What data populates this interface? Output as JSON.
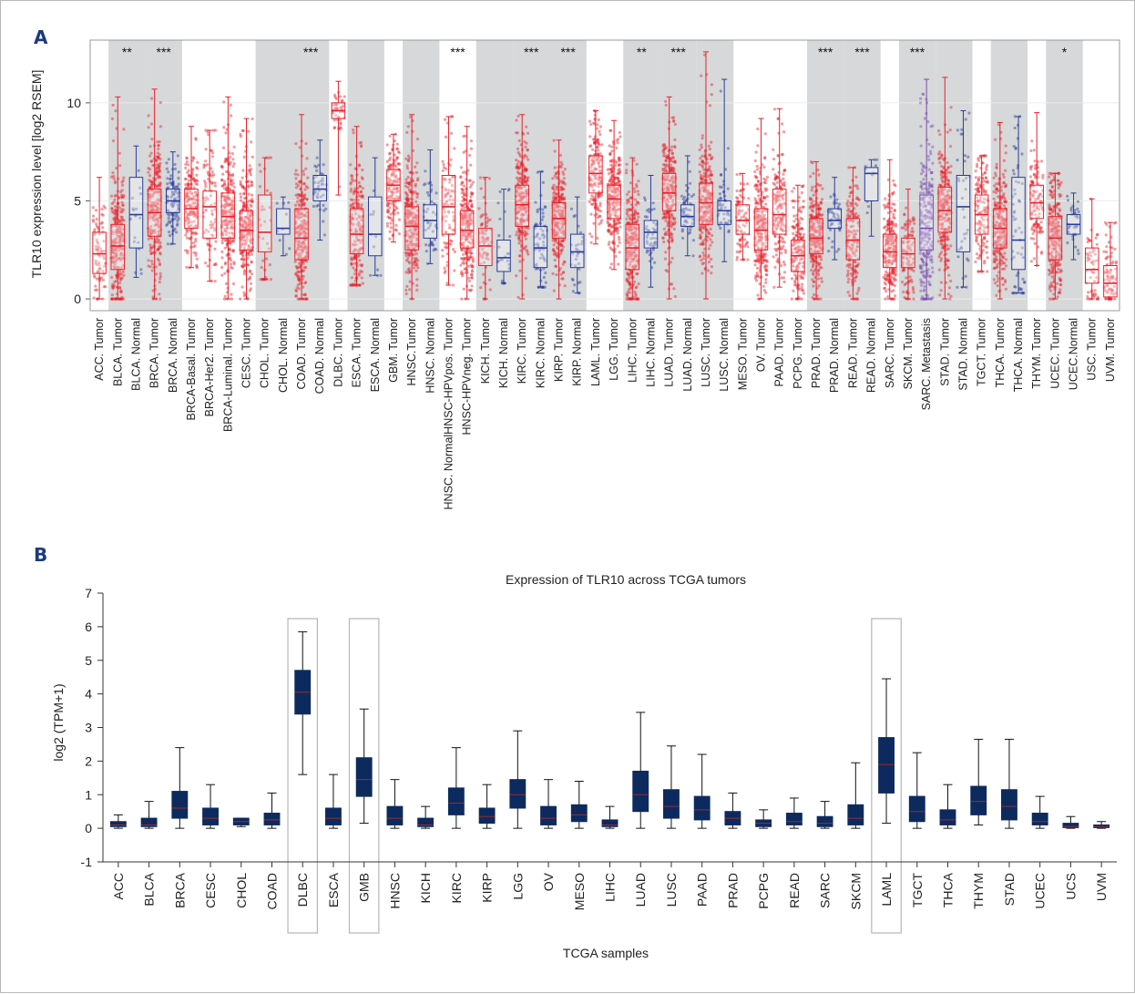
{
  "panels": {
    "a_letter": "A",
    "b_letter": "B"
  },
  "colors": {
    "tumor": "#e8212a",
    "normal": "#2a3d9a",
    "metastasis": "#7a4fb0",
    "highlight_bg": "#d6d8d9",
    "box_b": "#0d2a5e"
  },
  "chart_data": [
    {
      "type": "box",
      "title": "",
      "xlabel": "",
      "ylabel": "TLR10 expression level [log2 RSEM]",
      "ylim": [
        -0.6,
        13.2
      ],
      "yticks": [
        0,
        5,
        10
      ],
      "grid": true,
      "categories": [
        "ACC. Tumor",
        "BLCA. Tumor",
        "BLCA. Normal",
        "BRCA. Tumor",
        "BRCA. Normal",
        "BRCA-Basal. Tumor",
        "BRCA-Her2. Tumor",
        "BRCA-Luminal. Tumor",
        "CESC. Tumor",
        "CHOL. Tumor",
        "CHOL. Normal",
        "COAD. Tumor",
        "COAD. Normal",
        "DLBC. Tumor",
        "ESCA. Tumor",
        "ESCA. Normal",
        "GBM. Tumor",
        "HNSC.Tumor",
        "HNSC. Normal",
        "HNSC. NormalHNSC-HPVpos. Tumor",
        "HNSC-HPVneg. Tumor",
        "KICH. Tumor",
        "KICH. Normal",
        "KIRC. Tumor",
        "KIRC. Normal",
        "KIRP. Tumor",
        "KIRP. Normal",
        "LAML. Tumor",
        "LGG. Tumor",
        "LIHC. Tumor",
        "LIHC. Normal",
        "LUAD. Tumor",
        "LUAD. Normal",
        "LUSC. Tumor",
        "LUSC. Normal",
        "MESO. Tumor",
        "OV. Tumor",
        "PAAD. Tumor",
        "PCPG. Tumor",
        "PRAD. Tumor",
        "PRAD. Normal",
        "READ. Tumor",
        "READ. Normal",
        "SARC. Tumor",
        "SKCM. Tumor",
        "SARC. Metastasis",
        "STAD. Tumor",
        "STAD. Normal",
        "TGCT. Tumor",
        "THCA. Tumor",
        "THCA. Normal",
        "THYM. Tumor",
        "UCEC. Tumor",
        "UCEC.Normal",
        "USC. Tumor",
        "UVM. Tumor"
      ],
      "groups": [
        "tumor",
        "tumor",
        "normal",
        "tumor",
        "normal",
        "tumor",
        "tumor",
        "tumor",
        "tumor",
        "tumor",
        "normal",
        "tumor",
        "normal",
        "tumor",
        "tumor",
        "normal",
        "tumor",
        "tumor",
        "normal",
        "tumor",
        "tumor",
        "tumor",
        "normal",
        "tumor",
        "normal",
        "tumor",
        "normal",
        "tumor",
        "tumor",
        "tumor",
        "normal",
        "tumor",
        "normal",
        "tumor",
        "normal",
        "tumor",
        "tumor",
        "tumor",
        "tumor",
        "tumor",
        "normal",
        "tumor",
        "normal",
        "tumor",
        "tumor",
        "metastasis",
        "tumor",
        "normal",
        "tumor",
        "tumor",
        "normal",
        "tumor",
        "tumor",
        "normal",
        "tumor",
        "tumor"
      ],
      "shaded_pairs": [
        [
          1,
          2
        ],
        [
          3,
          4
        ],
        [
          9,
          10
        ],
        [
          11,
          12
        ],
        [
          14,
          15
        ],
        [
          17,
          18
        ],
        [
          21,
          22
        ],
        [
          23,
          24
        ],
        [
          25,
          26
        ],
        [
          29,
          30
        ],
        [
          31,
          32
        ],
        [
          33,
          34
        ],
        [
          39,
          40
        ],
        [
          41,
          42
        ],
        [
          44,
          45
        ],
        [
          46,
          47
        ],
        [
          49,
          50
        ],
        [
          52,
          53
        ]
      ],
      "significance": [
        {
          "pair": [
            1,
            2
          ],
          "label": "**"
        },
        {
          "pair": [
            3,
            4
          ],
          "label": "***"
        },
        {
          "pair": [
            11,
            12
          ],
          "label": "***"
        },
        {
          "pair": [
            19,
            20
          ],
          "label": "***"
        },
        {
          "pair": [
            23,
            24
          ],
          "label": "***"
        },
        {
          "pair": [
            25,
            26
          ],
          "label": "***"
        },
        {
          "pair": [
            29,
            30
          ],
          "label": "**"
        },
        {
          "pair": [
            31,
            32
          ],
          "label": "***"
        },
        {
          "pair": [
            39,
            40
          ],
          "label": "***"
        },
        {
          "pair": [
            41,
            42
          ],
          "label": "***"
        },
        {
          "pair": [
            44,
            45
          ],
          "label": "***"
        },
        {
          "pair": [
            52,
            53
          ],
          "label": "*"
        }
      ],
      "boxes": [
        {
          "min": 0,
          "q1": 1.3,
          "median": 2.3,
          "q3": 3.4,
          "max": 6.2,
          "n": 79
        },
        {
          "min": 0,
          "q1": 1.5,
          "median": 2.7,
          "q3": 3.8,
          "max": 10.3,
          "n": 408
        },
        {
          "min": 1.1,
          "q1": 2.6,
          "median": 4.3,
          "q3": 6.2,
          "max": 7.8,
          "n": 19
        },
        {
          "min": 0,
          "q1": 3.2,
          "median": 4.4,
          "q3": 5.6,
          "max": 10.7,
          "n": 1100
        },
        {
          "min": 2.8,
          "q1": 4.4,
          "median": 5.0,
          "q3": 5.6,
          "max": 7.5,
          "n": 112
        },
        {
          "min": 1.6,
          "q1": 3.6,
          "median": 4.6,
          "q3": 5.6,
          "max": 8.8,
          "n": 190
        },
        {
          "min": 0.9,
          "q1": 3.1,
          "median": 4.7,
          "q3": 5.5,
          "max": 8.6,
          "n": 82
        },
        {
          "min": 0,
          "q1": 3.1,
          "median": 4.2,
          "q3": 5.4,
          "max": 10.3,
          "n": 566
        },
        {
          "min": 0,
          "q1": 2.5,
          "median": 3.5,
          "q3": 4.5,
          "max": 9.2,
          "n": 306
        },
        {
          "min": 1.0,
          "q1": 2.4,
          "median": 3.4,
          "q3": 5.3,
          "max": 7.2,
          "n": 36
        },
        {
          "min": 2.2,
          "q1": 3.3,
          "median": 3.6,
          "q3": 4.6,
          "max": 5.2,
          "n": 9
        },
        {
          "min": 0,
          "q1": 2.0,
          "median": 3.1,
          "q3": 4.6,
          "max": 9.4,
          "n": 457
        },
        {
          "min": 3.0,
          "q1": 5.0,
          "median": 5.6,
          "q3": 6.3,
          "max": 8.1,
          "n": 41
        },
        {
          "min": 5.3,
          "q1": 9.2,
          "median": 9.6,
          "q3": 10.0,
          "max": 11.1,
          "n": 48
        },
        {
          "min": 0.7,
          "q1": 2.3,
          "median": 3.3,
          "q3": 4.6,
          "max": 8.8,
          "n": 184
        },
        {
          "min": 1.2,
          "q1": 2.2,
          "median": 3.3,
          "q3": 5.2,
          "max": 7.2,
          "n": 11
        },
        {
          "min": 2.9,
          "q1": 5.0,
          "median": 5.8,
          "q3": 6.6,
          "max": 8.4,
          "n": 153
        },
        {
          "min": 0,
          "q1": 2.5,
          "median": 3.7,
          "q3": 4.7,
          "max": 9.4,
          "n": 520
        },
        {
          "min": 1.8,
          "q1": 3.1,
          "median": 4.0,
          "q3": 4.8,
          "max": 7.6,
          "n": 44
        },
        {
          "min": 0.7,
          "q1": 3.3,
          "median": 4.7,
          "q3": 6.3,
          "max": 9.3,
          "n": 97
        },
        {
          "min": 0,
          "q1": 2.6,
          "median": 3.5,
          "q3": 4.5,
          "max": 8.8,
          "n": 421
        },
        {
          "min": 0,
          "q1": 1.7,
          "median": 2.7,
          "q3": 3.6,
          "max": 6.2,
          "n": 66
        },
        {
          "min": 0.8,
          "q1": 1.4,
          "median": 2.1,
          "q3": 3.0,
          "max": 5.6,
          "n": 25
        },
        {
          "min": 0,
          "q1": 3.7,
          "median": 4.8,
          "q3": 5.8,
          "max": 9.4,
          "n": 533
        },
        {
          "min": 0.6,
          "q1": 1.6,
          "median": 2.6,
          "q3": 3.7,
          "max": 6.5,
          "n": 72
        },
        {
          "min": 0,
          "q1": 3.1,
          "median": 4.1,
          "q3": 4.9,
          "max": 8.1,
          "n": 290
        },
        {
          "min": 0.3,
          "q1": 1.6,
          "median": 2.4,
          "q3": 3.3,
          "max": 5.2,
          "n": 32
        },
        {
          "min": 2.8,
          "q1": 5.4,
          "median": 6.4,
          "q3": 7.3,
          "max": 9.6,
          "n": 173
        },
        {
          "min": 1.5,
          "q1": 4.1,
          "median": 5.1,
          "q3": 5.8,
          "max": 9.1,
          "n": 516
        },
        {
          "min": 0,
          "q1": 1.5,
          "median": 2.6,
          "q3": 3.8,
          "max": 7.2,
          "n": 371
        },
        {
          "min": 0.6,
          "q1": 2.6,
          "median": 3.4,
          "q3": 4.0,
          "max": 6.3,
          "n": 50
        },
        {
          "min": 0,
          "q1": 4.5,
          "median": 5.4,
          "q3": 6.4,
          "max": 10.3,
          "n": 515
        },
        {
          "min": 2.2,
          "q1": 3.7,
          "median": 4.2,
          "q3": 4.8,
          "max": 7.3,
          "n": 59
        },
        {
          "min": 0,
          "q1": 3.8,
          "median": 4.9,
          "q3": 5.9,
          "max": 12.6,
          "n": 501
        },
        {
          "min": 1.9,
          "q1": 3.8,
          "median": 4.5,
          "q3": 5.0,
          "max": 11.2,
          "n": 51
        },
        {
          "min": 2.0,
          "q1": 3.3,
          "median": 4.0,
          "q3": 4.8,
          "max": 6.4,
          "n": 87
        },
        {
          "min": 0,
          "q1": 2.5,
          "median": 3.5,
          "q3": 4.6,
          "max": 9.2,
          "n": 303
        },
        {
          "min": 0.6,
          "q1": 3.3,
          "median": 4.3,
          "q3": 5.6,
          "max": 9.7,
          "n": 178
        },
        {
          "min": 0,
          "q1": 1.4,
          "median": 2.2,
          "q3": 3.0,
          "max": 5.8,
          "n": 179
        },
        {
          "min": 0,
          "q1": 2.3,
          "median": 3.1,
          "q3": 4.1,
          "max": 7.0,
          "n": 497
        },
        {
          "min": 2.0,
          "q1": 3.6,
          "median": 4.0,
          "q3": 4.6,
          "max": 6.2,
          "n": 52
        },
        {
          "min": 0,
          "q1": 2.0,
          "median": 3.0,
          "q3": 4.1,
          "max": 6.7,
          "n": 166
        },
        {
          "min": 3.2,
          "q1": 5.0,
          "median": 6.4,
          "q3": 6.7,
          "max": 7.1,
          "n": 10
        },
        {
          "min": 0,
          "q1": 1.6,
          "median": 2.4,
          "q3": 3.3,
          "max": 7.1,
          "n": 259
        },
        {
          "min": 0,
          "q1": 1.6,
          "median": 2.3,
          "q3": 3.1,
          "max": 5.6,
          "n": 103
        },
        {
          "min": 0,
          "q1": 2.5,
          "median": 3.6,
          "q3": 5.3,
          "max": 11.2,
          "n": 368
        },
        {
          "min": 0,
          "q1": 3.4,
          "median": 4.5,
          "q3": 5.7,
          "max": 11.3,
          "n": 415
        },
        {
          "min": 0.6,
          "q1": 2.4,
          "median": 4.7,
          "q3": 6.3,
          "max": 9.6,
          "n": 35
        },
        {
          "min": 1.4,
          "q1": 3.3,
          "median": 4.3,
          "q3": 5.3,
          "max": 7.3,
          "n": 156
        },
        {
          "min": 0,
          "q1": 2.6,
          "median": 3.6,
          "q3": 4.6,
          "max": 9.0,
          "n": 509
        },
        {
          "min": 0.3,
          "q1": 1.5,
          "median": 3.0,
          "q3": 6.2,
          "max": 9.3,
          "n": 59
        },
        {
          "min": 1.7,
          "q1": 4.1,
          "median": 4.9,
          "q3": 5.8,
          "max": 9.5,
          "n": 120
        },
        {
          "min": 0,
          "q1": 2.0,
          "median": 3.1,
          "q3": 4.2,
          "max": 6.4,
          "n": 545
        },
        {
          "min": 2.0,
          "q1": 3.3,
          "median": 3.8,
          "q3": 4.3,
          "max": 5.4,
          "n": 35
        },
        {
          "min": 0,
          "q1": 0.8,
          "median": 1.5,
          "q3": 2.6,
          "max": 5.1,
          "n": 57
        },
        {
          "min": 0,
          "q1": 0.1,
          "median": 0.8,
          "q3": 1.7,
          "max": 3.9,
          "n": 80
        }
      ]
    },
    {
      "type": "box",
      "title": "Expression of TLR10 across TCGA tumors",
      "xlabel": "TCGA samples",
      "ylabel": "log2 (TPM+1)",
      "ylim": [
        -1,
        7
      ],
      "yticks": [
        -1,
        0,
        1,
        2,
        3,
        4,
        5,
        6,
        7
      ],
      "grid": false,
      "categories": [
        "ACC",
        "BLCA",
        "BRCA",
        "CESC",
        "CHOL",
        "COAD",
        "DLBC",
        "ESCA",
        "GMB",
        "HNSC",
        "KICH",
        "KIRC",
        "KIRP",
        "LGG",
        "OV",
        "MESO",
        "LIHC",
        "LUAD",
        "LUSC",
        "PAAD",
        "PRAD",
        "PCPG",
        "READ",
        "SARC",
        "SKCM",
        "LAML",
        "TGCT",
        "THCA",
        "THYM",
        "STAD",
        "UCEC",
        "UCS",
        "UVM"
      ],
      "highlighted": [
        "DLBC",
        "GMB",
        "LAML"
      ],
      "boxes": [
        {
          "min": 0,
          "q1": 0.05,
          "median": 0.1,
          "q3": 0.2,
          "max": 0.4
        },
        {
          "min": 0,
          "q1": 0.05,
          "median": 0.1,
          "q3": 0.3,
          "max": 0.8
        },
        {
          "min": 0,
          "q1": 0.3,
          "median": 0.6,
          "q3": 1.1,
          "max": 2.4
        },
        {
          "min": 0,
          "q1": 0.1,
          "median": 0.3,
          "q3": 0.6,
          "max": 1.3
        },
        {
          "min": 0.05,
          "q1": 0.1,
          "median": 0.2,
          "q3": 0.3,
          "max": 0.3
        },
        {
          "min": 0,
          "q1": 0.1,
          "median": 0.25,
          "q3": 0.45,
          "max": 1.05
        },
        {
          "min": 1.6,
          "q1": 3.4,
          "median": 4.05,
          "q3": 4.7,
          "max": 5.85
        },
        {
          "min": 0,
          "q1": 0.1,
          "median": 0.3,
          "q3": 0.6,
          "max": 1.6
        },
        {
          "min": 0.15,
          "q1": 0.95,
          "median": 1.45,
          "q3": 2.1,
          "max": 3.55
        },
        {
          "min": 0,
          "q1": 0.1,
          "median": 0.3,
          "q3": 0.65,
          "max": 1.45
        },
        {
          "min": 0,
          "q1": 0.05,
          "median": 0.1,
          "q3": 0.3,
          "max": 0.65
        },
        {
          "min": 0,
          "q1": 0.4,
          "median": 0.75,
          "q3": 1.2,
          "max": 2.4
        },
        {
          "min": 0,
          "q1": 0.15,
          "median": 0.35,
          "q3": 0.6,
          "max": 1.3
        },
        {
          "min": 0,
          "q1": 0.6,
          "median": 1.0,
          "q3": 1.45,
          "max": 2.9
        },
        {
          "min": 0,
          "q1": 0.1,
          "median": 0.3,
          "q3": 0.65,
          "max": 1.45
        },
        {
          "min": 0,
          "q1": 0.2,
          "median": 0.4,
          "q3": 0.7,
          "max": 1.4
        },
        {
          "min": 0,
          "q1": 0.05,
          "median": 0.1,
          "q3": 0.25,
          "max": 0.65
        },
        {
          "min": 0,
          "q1": 0.5,
          "median": 1.0,
          "q3": 1.7,
          "max": 3.45
        },
        {
          "min": 0,
          "q1": 0.3,
          "median": 0.65,
          "q3": 1.15,
          "max": 2.45
        },
        {
          "min": 0,
          "q1": 0.25,
          "median": 0.55,
          "q3": 0.95,
          "max": 2.2
        },
        {
          "min": 0,
          "q1": 0.1,
          "median": 0.3,
          "q3": 0.5,
          "max": 1.05
        },
        {
          "min": 0,
          "q1": 0.05,
          "median": 0.15,
          "q3": 0.25,
          "max": 0.55
        },
        {
          "min": 0,
          "q1": 0.1,
          "median": 0.2,
          "q3": 0.45,
          "max": 0.9
        },
        {
          "min": 0,
          "q1": 0.05,
          "median": 0.15,
          "q3": 0.35,
          "max": 0.8
        },
        {
          "min": 0,
          "q1": 0.1,
          "median": 0.3,
          "q3": 0.7,
          "max": 1.95
        },
        {
          "min": 0.15,
          "q1": 1.05,
          "median": 1.9,
          "q3": 2.7,
          "max": 4.45
        },
        {
          "min": 0,
          "q1": 0.2,
          "median": 0.5,
          "q3": 0.95,
          "max": 2.25
        },
        {
          "min": 0,
          "q1": 0.1,
          "median": 0.25,
          "q3": 0.55,
          "max": 1.3
        },
        {
          "min": 0.1,
          "q1": 0.4,
          "median": 0.8,
          "q3": 1.25,
          "max": 2.65
        },
        {
          "min": 0,
          "q1": 0.25,
          "median": 0.65,
          "q3": 1.15,
          "max": 2.65
        },
        {
          "min": 0,
          "q1": 0.1,
          "median": 0.2,
          "q3": 0.45,
          "max": 0.95
        },
        {
          "min": 0,
          "q1": 0.02,
          "median": 0.05,
          "q3": 0.15,
          "max": 0.35
        },
        {
          "min": 0,
          "q1": 0.02,
          "median": 0.05,
          "q3": 0.1,
          "max": 0.2
        }
      ]
    }
  ]
}
